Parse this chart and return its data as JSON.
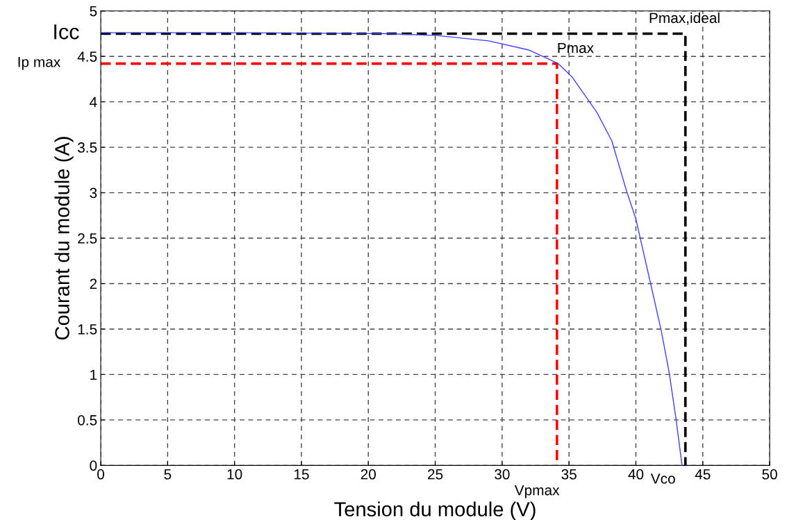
{
  "chart_data": {
    "type": "line",
    "xlabel": "Tension du module (V)",
    "ylabel": "Courant du module (A)",
    "xlim": [
      0,
      50
    ],
    "ylim": [
      0,
      5
    ],
    "xticks": [
      0,
      5,
      10,
      15,
      20,
      25,
      30,
      35,
      40,
      45,
      50
    ],
    "yticks": [
      0,
      0.5,
      1,
      1.5,
      2,
      2.5,
      3,
      3.5,
      4,
      4.5,
      5
    ],
    "grid": true,
    "legend": false,
    "series": [
      {
        "color": "#3f3fff",
        "line_style": "solid",
        "x": [
          0,
          10,
          21.5,
          25.1,
          29.0,
          32.0,
          34.2,
          35.25,
          37.1,
          38.2,
          39.3,
          40.0,
          41.1,
          41.9,
          42.5,
          43.0,
          43.45
        ],
        "values": [
          4.76,
          4.76,
          4.75,
          4.73,
          4.67,
          4.57,
          4.42,
          4.27,
          3.88,
          3.57,
          3.02,
          2.71,
          2.0,
          1.48,
          1.01,
          0.51,
          0
        ]
      },
      {
        "color": "#000000",
        "line_style": "dashed",
        "x": [
          0,
          43.7,
          43.7
        ],
        "values": [
          4.75,
          4.75,
          0
        ]
      },
      {
        "color": "#ff0000",
        "line_style": "dashed",
        "x": [
          0,
          34.1,
          34.1
        ],
        "values": [
          4.42,
          4.42,
          0
        ]
      }
    ],
    "annotations": [
      {
        "text": "Icc",
        "x": 0,
        "y": 4.75
      },
      "Ip max",
      {
        "text": "Pmax",
        "x": 34.1,
        "y": 4.42
      },
      {
        "text": "Pmax,ideal",
        "x": 43.7,
        "y": 4.75
      },
      {
        "text": "Vpmax",
        "x": 34.1,
        "y": 0
      },
      {
        "text": "Vco",
        "x": 43.7,
        "y": 0
      }
    ]
  }
}
